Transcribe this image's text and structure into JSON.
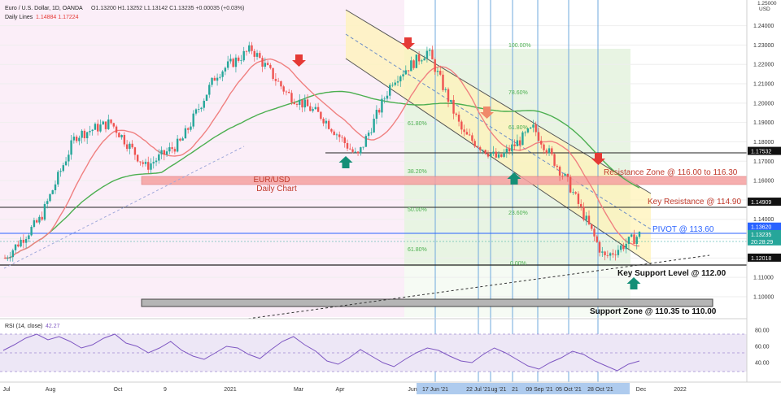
{
  "header": {
    "symbol_line": "Euro / U.S. Dollar, 1D, OANDA",
    "ohlc": "O1.13200 H1.13252 L1.13142 C1.13235 +0.00035 (+0.03%)",
    "indicator_name": "Daily Lines",
    "indicator_values": "1.14884 1.17224",
    "currency": "USD"
  },
  "colors": {
    "up_candle": "#26a69a",
    "down_candle": "#ef5350",
    "ma_fast": "#f08080",
    "ma_slow": "#4caf50",
    "rsi": "#7e57c2",
    "blue": "#2962ff",
    "bg_left": "#fbeef8",
    "bg_mid": "#e8f4e3",
    "channel": "#fff3b8"
  },
  "chart_data": [
    {
      "type": "candlestick",
      "title": "EUR/USD",
      "subtitle": "Daily Chart",
      "y_axis": {
        "ylim": [
          1.092,
          1.252
        ],
        "ticks": [
          "1.24000",
          "1.23000",
          "1.22000",
          "1.21000",
          "1.20000",
          "1.19000",
          "1.18000",
          "1.17000",
          "1.16000",
          "1.15000",
          "1.14000",
          "1.13000",
          "1.12000",
          "1.11000",
          "1.10000"
        ],
        "top_label": "1.25000"
      },
      "x_axis": {
        "ticks": [
          "Jul",
          "Aug",
          "Oct",
          "9",
          "2021",
          "Mar",
          "Apr",
          "Jun",
          "17 Jun '21",
          "22 Jul '21",
          "ug '21",
          "21",
          "09 Sep '21",
          "05 Oct '21",
          "28 Oct '21",
          "Dec",
          "2022"
        ],
        "highlighted": [
          "17 Jun '21",
          "22 Jul '21",
          "ug '21",
          "21",
          "09 Sep '21",
          "05 Oct '21",
          "28 Oct '21"
        ]
      },
      "price_series": [
        {
          "date": "Jun 2020",
          "value": 1.12
        },
        {
          "date": "Jul 2020",
          "value": 1.14
        },
        {
          "date": "Aug 2020",
          "value": 1.183
        },
        {
          "date": "Sep 2020",
          "value": 1.19
        },
        {
          "date": "Oct 2020",
          "value": 1.167
        },
        {
          "date": "Nov 2020",
          "value": 1.18
        },
        {
          "date": "Dec 2020",
          "value": 1.215
        },
        {
          "date": "Jan 2021",
          "value": 1.228
        },
        {
          "date": "Feb 2021",
          "value": 1.205
        },
        {
          "date": "Mar 2021",
          "value": 1.193
        },
        {
          "date": "Apr 2021",
          "value": 1.172
        },
        {
          "date": "May 2021",
          "value": 1.212
        },
        {
          "date": "Jun 2021",
          "value": 1.227
        },
        {
          "date": "Jul 2021",
          "value": 1.184
        },
        {
          "date": "Aug 2021",
          "value": 1.171
        },
        {
          "date": "Sep 2021",
          "value": 1.187
        },
        {
          "date": "Oct 2021",
          "value": 1.158
        },
        {
          "date": "Nov 2021",
          "value": 1.12
        },
        {
          "date": "Dec 2021",
          "value": 1.132
        }
      ],
      "price_labels": [
        {
          "label": "1.17532",
          "value": 1.17532
        },
        {
          "label": "1.14909",
          "value": 1.14909
        },
        {
          "label": "1.13620",
          "value": 1.1362
        },
        {
          "label": "1.13235",
          "value": 1.13235
        },
        {
          "label": "20:28:29",
          "value": 1.1286
        },
        {
          "label": "1.12018",
          "value": 1.12018
        }
      ],
      "fibonacci": [
        {
          "level": "100.00%",
          "value": 1.2266
        },
        {
          "level": "78.60%",
          "value": 1.2037
        },
        {
          "level": "61.80%",
          "value": 1.1857
        },
        {
          "level": "50.00%",
          "value": 1.1731
        },
        {
          "level": "38.20%",
          "value": 1.1605
        },
        {
          "level": "23.60%",
          "value": 1.1449
        },
        {
          "level": "61.80%",
          "value": 1.1857
        },
        {
          "level": "50.00%",
          "value": 1.1731
        },
        {
          "level": "0.00%",
          "value": 1.1212
        }
      ],
      "annotations": [
        "Resistance Zone @ 116.00 to 116.30",
        "Key Resistance @ 114.90",
        "PIVOT @ 113.60",
        "Key Support Level @ 112.00",
        "Support Zone  @ 110.35 to 110.00"
      ]
    },
    {
      "type": "line",
      "title": "RSI (14, close)",
      "current": "42.27",
      "ylim": [
        20,
        90
      ],
      "ticks": [
        "80.00",
        "60.00",
        "40.00"
      ],
      "values": [
        55,
        62,
        70,
        75,
        68,
        72,
        66,
        58,
        62,
        70,
        75,
        64,
        60,
        52,
        58,
        66,
        55,
        48,
        44,
        52,
        60,
        58,
        50,
        45,
        56,
        66,
        72,
        62,
        54,
        42,
        38,
        46,
        56,
        48,
        40,
        35,
        44,
        52,
        58,
        55,
        48,
        42,
        40,
        50,
        58,
        52,
        44,
        36,
        32,
        40,
        46,
        54,
        50,
        42,
        36,
        30,
        38,
        42
      ]
    }
  ]
}
